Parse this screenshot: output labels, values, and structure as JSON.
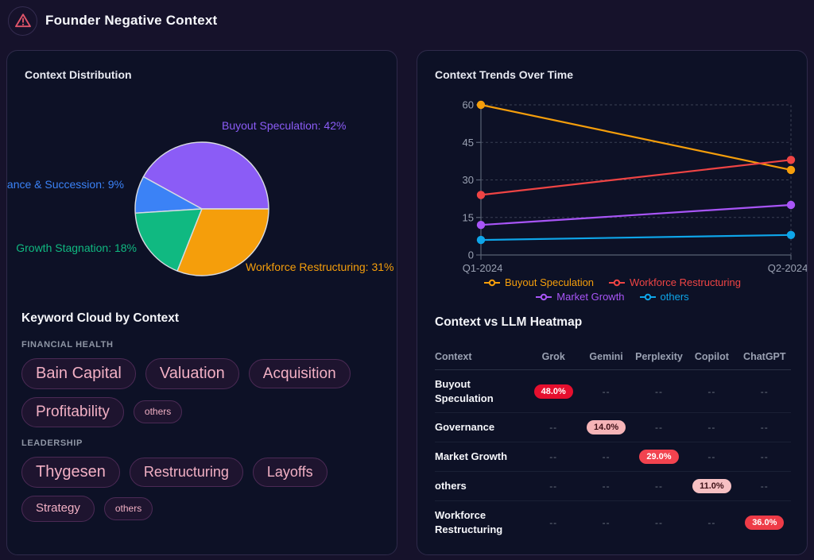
{
  "theme": {
    "page_bg": "#16122b",
    "card_bg": "#0d1126",
    "card_border": "#2e2a4a",
    "warning_icon_color": "#e0556a",
    "muted_text": "#9aa1b2",
    "keyword_pill_text": "#f2b0c4"
  },
  "header": {
    "title": "Founder Negative Context",
    "icon": "warning-triangle-icon"
  },
  "keyword_cloud": {
    "title": "Keyword Cloud by Context",
    "groups": [
      {
        "name": "FINANCIAL HEALTH",
        "keywords": [
          {
            "label": "Bain Capital",
            "size": 20
          },
          {
            "label": "Valuation",
            "size": 20
          },
          {
            "label": "Acquisition",
            "size": 19
          },
          {
            "label": "Profitability",
            "size": 19
          },
          {
            "label": "others",
            "size": 12
          }
        ]
      },
      {
        "name": "LEADERSHIP",
        "keywords": [
          {
            "label": "Thygesen",
            "size": 20
          },
          {
            "label": "Restructuring",
            "size": 18
          },
          {
            "label": "Layoffs",
            "size": 18
          },
          {
            "label": "Strategy",
            "size": 15
          },
          {
            "label": "others",
            "size": 12
          }
        ]
      }
    ]
  },
  "chart_data": [
    {
      "id": "context-distribution",
      "type": "pie",
      "title": "Context Distribution",
      "categories": [
        "Buyout Speculation",
        "Governance & Succession",
        "Growth Stagnation",
        "Workforce Restructuring"
      ],
      "values": [
        42,
        9,
        18,
        31
      ],
      "colors": [
        "#8b5cf6",
        "#3b82f6",
        "#10b981",
        "#f59e0b"
      ],
      "label_format": "{name}: {value}%",
      "start_angle_deg": 0,
      "direction": "counterclockwise",
      "legend_position": "none"
    },
    {
      "id": "context-trends",
      "type": "line",
      "title": "Context Trends Over Time",
      "x": [
        "Q1-2024",
        "Q2-2024"
      ],
      "series": [
        {
          "name": "Buyout Speculation",
          "values": [
            60,
            34
          ],
          "color": "#f59e0b"
        },
        {
          "name": "Workforce Restructuring",
          "values": [
            24,
            38
          ],
          "color": "#ef4444"
        },
        {
          "name": "Market Growth",
          "values": [
            12,
            20
          ],
          "color": "#a855f7"
        },
        {
          "name": "others",
          "values": [
            6,
            8
          ],
          "color": "#0ea5e9"
        }
      ],
      "ylim": [
        0,
        60
      ],
      "yticks": [
        0,
        15,
        30,
        45,
        60
      ],
      "grid": "dashed",
      "legend_position": "bottom"
    },
    {
      "id": "context-llm-heatmap",
      "type": "heatmap",
      "title": "Context vs LLM Heatmap",
      "columns": [
        "Context",
        "Grok",
        "Gemini",
        "Perplexity",
        "Copilot",
        "ChatGPT"
      ],
      "rows": [
        {
          "label": "Buyout Speculation",
          "cells": [
            "48.0%",
            "--",
            "--",
            "--",
            "--"
          ]
        },
        {
          "label": "Governance",
          "cells": [
            "--",
            "14.0%",
            "--",
            "--",
            "--"
          ]
        },
        {
          "label": "Market Growth",
          "cells": [
            "--",
            "--",
            "29.0%",
            "--",
            "--"
          ]
        },
        {
          "label": "others",
          "cells": [
            "--",
            "--",
            "--",
            "11.0%",
            "--"
          ]
        },
        {
          "label": "Workforce Restructuring",
          "cells": [
            "--",
            "--",
            "--",
            "--",
            "36.0%"
          ]
        }
      ],
      "empty_cell": "--",
      "badge_styles": {
        "48.0%": {
          "bg": "#e60f2e",
          "fg": "#ffffff"
        },
        "14.0%": {
          "bg": "#f5b4b7",
          "fg": "#3d1016"
        },
        "29.0%": {
          "bg": "#f2434f",
          "fg": "#ffffff"
        },
        "11.0%": {
          "bg": "#f6c0c3",
          "fg": "#3d1016"
        },
        "36.0%": {
          "bg": "#ee3b47",
          "fg": "#ffffff"
        }
      }
    }
  ]
}
